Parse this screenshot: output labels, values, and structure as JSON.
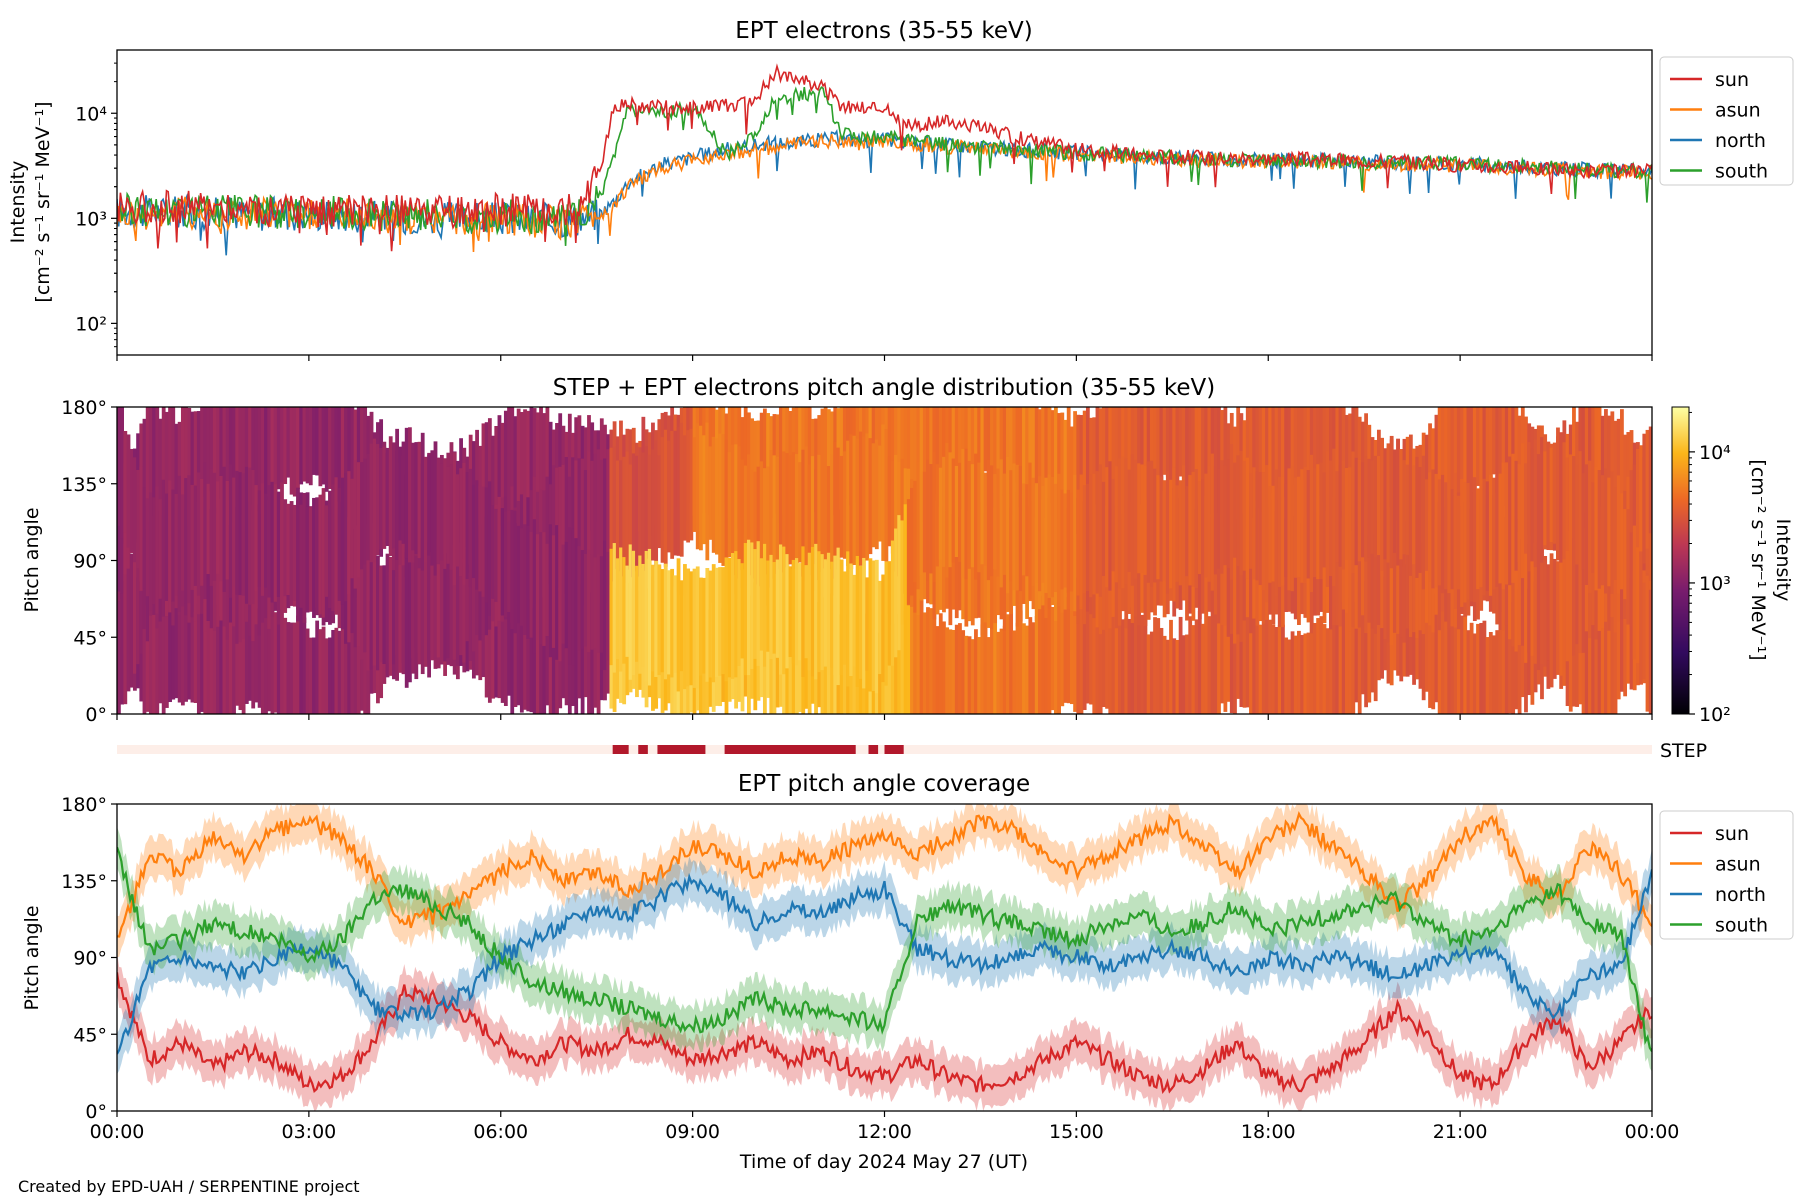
{
  "colors": {
    "sun": "#d62728",
    "asun": "#ff7f0e",
    "north": "#1f77b4",
    "south": "#2ca02c",
    "step_bar": "#b2182b",
    "step_background": "#fdeee8"
  },
  "footer": "Created by EPD-UAH / SERPENTINE project",
  "x_axis": {
    "label": "Time of day 2024 May 27 (UT)",
    "range_hours": [
      0,
      24
    ],
    "tick_hours": [
      0,
      3,
      6,
      9,
      12,
      15,
      18,
      21,
      24
    ],
    "tick_labels": [
      "00:00",
      "03:00",
      "06:00",
      "09:00",
      "12:00",
      "15:00",
      "18:00",
      "21:00",
      "00:00"
    ]
  },
  "chart_data": [
    {
      "type": "line",
      "title": "EPT electrons (35-55 keV)",
      "ylabel_lines": [
        "Intensity",
        "[cm$^{-2}$ s$^{-1}$ sr$^{-1}$ MeV$^{-1}$]"
      ],
      "ylabel_display": [
        "Intensity",
        "[cm⁻² s⁻¹ sr⁻¹ MeV⁻¹]"
      ],
      "yscale": "log",
      "ylim": [
        50,
        40000
      ],
      "y_tick_labels": [
        "10²",
        "10³",
        "10⁴"
      ],
      "legend": {
        "position": "outside-right-top",
        "entries": [
          "sun",
          "asun",
          "north",
          "south"
        ]
      },
      "x": [
        0,
        1,
        2,
        3,
        4,
        5,
        6,
        7,
        7.3,
        7.6,
        7.8,
        8,
        8.5,
        9,
        9.5,
        10,
        10.3,
        10.6,
        11,
        11.3,
        11.6,
        12,
        12.3,
        13,
        14,
        15,
        16,
        17,
        18,
        19,
        20,
        21,
        22,
        23,
        24
      ],
      "series": [
        {
          "name": "sun",
          "values": [
            1300,
            1300,
            1250,
            1200,
            1150,
            1150,
            1200,
            1200,
            1400,
            3500,
            12000,
            12500,
            11500,
            11000,
            12000,
            13000,
            24000,
            22000,
            18000,
            11500,
            11000,
            11000,
            7500,
            8500,
            6000,
            4500,
            4000,
            3800,
            3700,
            3600,
            3500,
            3200,
            3000,
            2800,
            2800
          ]
        },
        {
          "name": "asun",
          "values": [
            1100,
            1150,
            1100,
            1100,
            1050,
            1000,
            1000,
            900,
            1000,
            1100,
            1400,
            2000,
            3000,
            3500,
            4200,
            4500,
            4800,
            5000,
            5500,
            5500,
            5200,
            5500,
            5200,
            4800,
            4300,
            4000,
            3800,
            3600,
            3500,
            3400,
            3300,
            3200,
            3000,
            2800,
            2700
          ]
        },
        {
          "name": "north",
          "values": [
            1150,
            1150,
            1100,
            1100,
            1050,
            1000,
            1000,
            950,
            1000,
            1150,
            1500,
            2200,
            3200,
            3800,
            4500,
            5000,
            5200,
            5300,
            5600,
            5800,
            5500,
            5600,
            5300,
            5000,
            4500,
            4200,
            3900,
            3700,
            3600,
            3500,
            3400,
            3300,
            3100,
            2900,
            2800
          ]
        },
        {
          "name": "south",
          "values": [
            1200,
            1200,
            1150,
            1150,
            1100,
            1050,
            1050,
            1000,
            1100,
            1800,
            4500,
            11000,
            10000,
            11000,
            4000,
            6000,
            14000,
            15000,
            16000,
            6500,
            6000,
            6000,
            5500,
            5000,
            4500,
            4200,
            3900,
            3700,
            3600,
            3500,
            3400,
            3300,
            3100,
            2900,
            2800
          ]
        }
      ]
    },
    {
      "type": "heatmap",
      "title": "STEP + EPT electrons pitch angle distribution (35-55 keV)",
      "ylabel": "Pitch angle",
      "ylim": [
        0,
        180
      ],
      "y_tick_labels": [
        "0°",
        "45°",
        "90°",
        "135°",
        "180°"
      ],
      "colorbar": {
        "label_lines": [
          "Intensity",
          "[cm$^{-2}$ s$^{-1}$ sr$^{-1}$ MeV$^{-1}$]"
        ],
        "label_display": [
          "Intensity",
          "[cm⁻² s⁻¹ sr⁻¹ MeV⁻¹]"
        ],
        "scale": "log",
        "range": [
          100,
          22000
        ],
        "tick_labels": [
          "10²",
          "10³",
          "10⁴"
        ],
        "colormap": "inferno-like"
      },
      "segments": [
        {
          "start": 0,
          "end": 7.7,
          "intensity": 1200,
          "pa_range": [
            0,
            180
          ]
        },
        {
          "start": 7.7,
          "end": 9.0,
          "intensity_low_pa": 12000,
          "intensity_high_pa": 3000,
          "pa_range": [
            0,
            180
          ]
        },
        {
          "start": 9.0,
          "end": 12.4,
          "intensity_low_pa": 11000,
          "intensity_high_pa": 5000,
          "pa_range": [
            0,
            180
          ]
        },
        {
          "start": 12.4,
          "end": 15.0,
          "intensity": 5000,
          "pa_range": [
            0,
            180
          ]
        },
        {
          "start": 15.0,
          "end": 24.0,
          "intensity": 3500,
          "pa_range": [
            0,
            180
          ]
        }
      ]
    },
    {
      "type": "bar",
      "name_label": "STEP",
      "title": "",
      "intervals_hours": [
        [
          7.75,
          8.0
        ],
        [
          8.15,
          8.3
        ],
        [
          8.45,
          9.2
        ],
        [
          9.5,
          11.55
        ],
        [
          11.75,
          11.9
        ],
        [
          12.0,
          12.3
        ]
      ]
    },
    {
      "type": "line",
      "title": "EPT pitch angle coverage",
      "ylabel": "Pitch angle",
      "ylim": [
        0,
        180
      ],
      "y_tick_labels": [
        "0°",
        "45°",
        "90°",
        "135°",
        "180°"
      ],
      "legend": {
        "position": "outside-right-top",
        "entries": [
          "sun",
          "asun",
          "north",
          "south"
        ]
      },
      "band_halfwidth_deg": 12,
      "x": [
        0,
        0.5,
        1,
        1.5,
        2,
        2.5,
        3,
        3.5,
        4,
        4.5,
        5,
        5.5,
        6,
        6.5,
        7,
        7.5,
        8,
        8.5,
        9,
        9.5,
        10,
        10.5,
        11,
        11.5,
        12,
        12.5,
        13,
        13.5,
        14,
        14.5,
        15,
        15.5,
        16,
        16.5,
        17,
        17.5,
        18,
        18.5,
        19,
        19.5,
        20,
        20.5,
        21,
        21.5,
        22,
        22.5,
        23,
        23.5,
        24
      ],
      "series": [
        {
          "name": "sun",
          "values": [
            80,
            30,
            40,
            25,
            35,
            30,
            15,
            20,
            40,
            70,
            65,
            55,
            40,
            30,
            40,
            35,
            45,
            40,
            30,
            35,
            40,
            30,
            35,
            25,
            20,
            30,
            20,
            15,
            20,
            30,
            40,
            30,
            20,
            15,
            25,
            40,
            20,
            15,
            25,
            40,
            60,
            45,
            20,
            15,
            40,
            55,
            25,
            40,
            60
          ]
        },
        {
          "name": "asun",
          "values": [
            100,
            150,
            140,
            160,
            150,
            165,
            170,
            160,
            140,
            110,
            115,
            125,
            140,
            150,
            135,
            140,
            130,
            140,
            155,
            150,
            140,
            150,
            145,
            155,
            160,
            150,
            160,
            170,
            165,
            150,
            140,
            150,
            160,
            170,
            155,
            140,
            160,
            170,
            155,
            140,
            120,
            135,
            160,
            170,
            140,
            125,
            155,
            140,
            110
          ]
        },
        {
          "name": "north",
          "values": [
            30,
            85,
            90,
            85,
            80,
            90,
            95,
            85,
            60,
            55,
            60,
            70,
            90,
            100,
            110,
            120,
            115,
            125,
            135,
            125,
            110,
            120,
            115,
            125,
            130,
            95,
            90,
            85,
            90,
            95,
            90,
            85,
            90,
            95,
            90,
            80,
            90,
            85,
            90,
            85,
            80,
            85,
            90,
            95,
            70,
            55,
            80,
            85,
            140
          ]
        },
        {
          "name": "south",
          "values": [
            150,
            95,
            100,
            110,
            105,
            100,
            90,
            100,
            125,
            130,
            120,
            110,
            90,
            75,
            70,
            65,
            60,
            55,
            50,
            55,
            65,
            60,
            60,
            55,
            50,
            110,
            120,
            115,
            110,
            105,
            100,
            110,
            115,
            105,
            110,
            120,
            105,
            110,
            115,
            120,
            125,
            110,
            100,
            105,
            120,
            130,
            110,
            105,
            30
          ]
        }
      ]
    }
  ]
}
